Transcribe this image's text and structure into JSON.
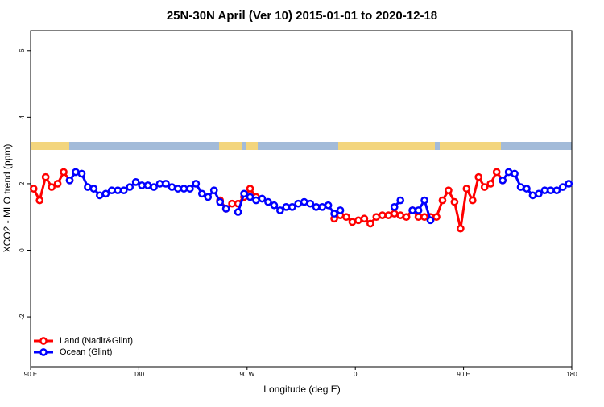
{
  "chart_data": {
    "type": "line",
    "title": "25N-30N April (Ver 10)   2015-01-01 to 2020-12-18",
    "x_label": "Longitude (deg E)",
    "y_label": "XCO2 - MLO trend (ppm)",
    "x": [
      92.5,
      97.5,
      102.5,
      107.5,
      112.5,
      117.5,
      122.5,
      127.5,
      132.5,
      137.5,
      142.5,
      147.5,
      152.5,
      157.5,
      162.5,
      167.5,
      172.5,
      177.5,
      182.5,
      187.5,
      192.5,
      197.5,
      202.5,
      207.5,
      212.5,
      217.5,
      222.5,
      227.5,
      232.5,
      237.5,
      242.5,
      247.5,
      252.5,
      257.5,
      262.5,
      267.5,
      272.5,
      277.5,
      282.5,
      287.5,
      292.5,
      297.5,
      302.5,
      307.5,
      312.5,
      317.5,
      322.5,
      327.5,
      332.5,
      337.5,
      342.5,
      347.5,
      352.5,
      357.5,
      362.5,
      367.5,
      372.5,
      377.5,
      382.5,
      387.5,
      392.5,
      397.5,
      402.5,
      407.5,
      412.5,
      417.5,
      422.5,
      427.5,
      432.5,
      437.5,
      442.5,
      447.5,
      452.5,
      457.5,
      462.5,
      467.5,
      472.5,
      477.5,
      482.5,
      487.5,
      492.5,
      497.5,
      502.5,
      507.5,
      512.5,
      517.5,
      522.5,
      527.5,
      532.5,
      537.5
    ],
    "series": [
      {
        "name": "Land (Nadir&Glint)",
        "color": "#ff0000",
        "values": [
          1.85,
          1.5,
          2.2,
          1.9,
          2.0,
          2.35,
          2.1,
          null,
          null,
          null,
          null,
          null,
          null,
          null,
          null,
          null,
          null,
          null,
          null,
          null,
          null,
          null,
          null,
          null,
          null,
          null,
          null,
          null,
          null,
          null,
          null,
          1.5,
          1.25,
          1.4,
          1.4,
          1.6,
          1.85,
          1.6,
          null,
          null,
          null,
          null,
          null,
          null,
          null,
          null,
          null,
          null,
          null,
          null,
          0.95,
          1.05,
          1.0,
          0.85,
          0.9,
          0.95,
          0.8,
          1.0,
          1.05,
          1.05,
          1.1,
          1.05,
          1.0,
          1.2,
          1.0,
          1.0,
          1.0,
          1.0,
          1.5,
          1.8,
          1.45,
          0.65,
          1.85,
          1.5,
          2.2,
          1.9,
          2.0,
          2.35,
          2.1,
          null,
          null,
          null,
          null,
          null,
          null,
          null,
          null,
          null,
          null,
          null
        ]
      },
      {
        "name": "Ocean (Glint)",
        "color": "#0000ff",
        "values": [
          null,
          null,
          null,
          null,
          null,
          null,
          2.1,
          2.35,
          2.3,
          1.9,
          1.85,
          1.65,
          1.7,
          1.8,
          1.8,
          1.8,
          1.9,
          2.05,
          1.95,
          1.95,
          1.9,
          2.0,
          2.0,
          1.9,
          1.85,
          1.85,
          1.85,
          2.0,
          1.7,
          1.6,
          1.8,
          1.45,
          1.25,
          null,
          1.15,
          1.7,
          1.6,
          1.5,
          1.55,
          1.45,
          1.35,
          1.2,
          1.3,
          1.3,
          1.4,
          1.45,
          1.4,
          1.3,
          1.3,
          1.35,
          1.1,
          1.2,
          null,
          null,
          null,
          null,
          null,
          null,
          null,
          null,
          1.3,
          1.5,
          null,
          1.2,
          1.2,
          1.5,
          0.9,
          null,
          null,
          null,
          null,
          null,
          null,
          null,
          null,
          null,
          null,
          null,
          2.1,
          2.35,
          2.3,
          1.9,
          1.85,
          1.65,
          1.7,
          1.8,
          1.8,
          1.8,
          1.9,
          2.0
        ]
      }
    ],
    "xlim": [
      90,
      540
    ],
    "xticks": [
      {
        "value": 90,
        "label": "90 E"
      },
      180,
      {
        "value": 270,
        "label": "90 W"
      },
      {
        "value": 360,
        "label": "0"
      },
      {
        "value": 450,
        "label": "90 E"
      },
      {
        "value": 540,
        "label": "180"
      }
    ],
    "ylim": [
      -3.5,
      6.6
    ],
    "yticks": [
      -2,
      0,
      2,
      4,
      6
    ],
    "legend": "bottom-left"
  }
}
